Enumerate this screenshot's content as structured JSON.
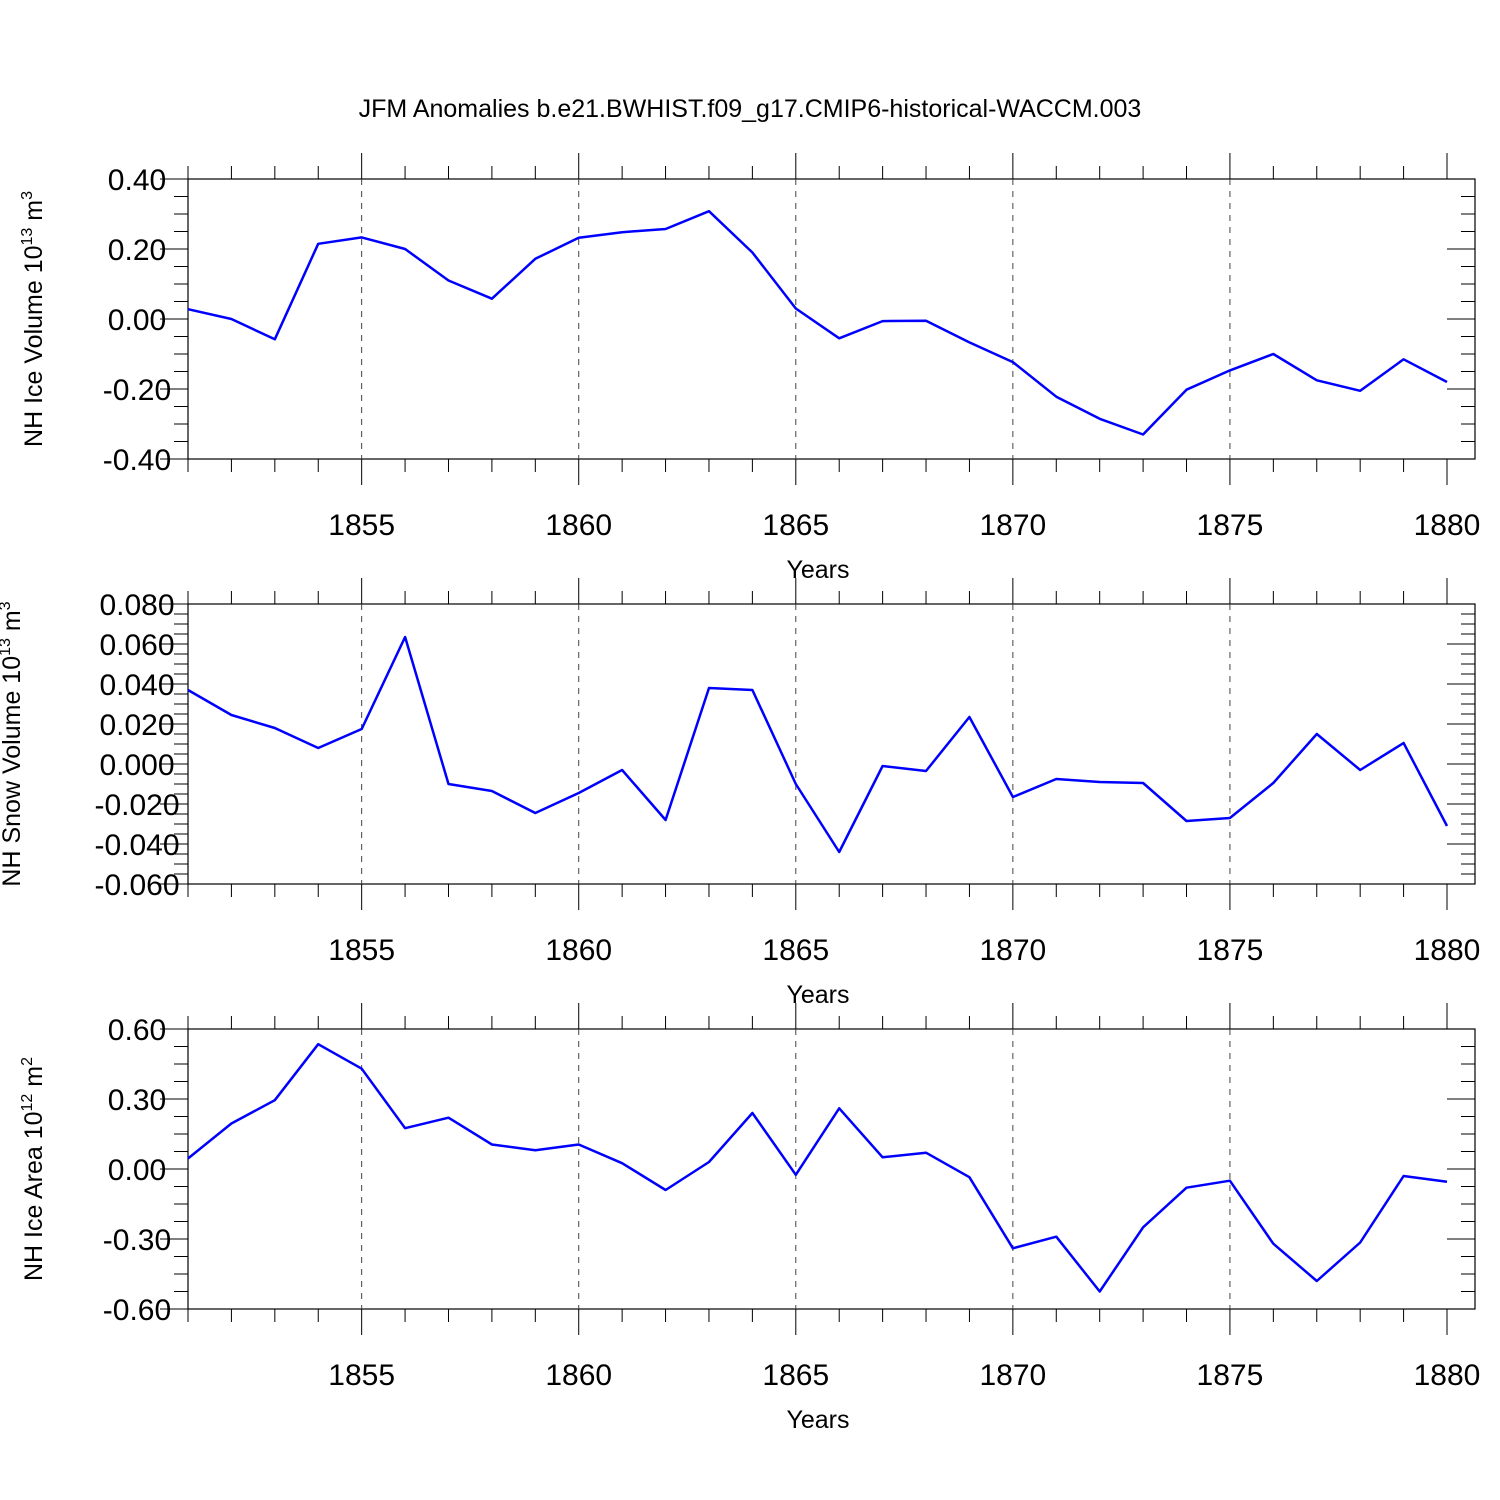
{
  "title": "JFM Anomalies b.e21.BWHIST.f09_g17.CMIP6-historical-WACCM.003",
  "chart_data": [
    {
      "type": "line",
      "ylabel": "NH Ice Volume 10",
      "ylabel_exp": "13",
      "ylabel_unit": " m",
      "ylabel_unit_exp": "3",
      "xlabel": "Years",
      "xlim": [
        1851,
        1880
      ],
      "ylim": [
        -0.4,
        0.4
      ],
      "yticks": [
        "-0.40",
        "-0.20",
        "0.00",
        "0.20",
        "0.40"
      ],
      "xticks": [
        "1855",
        "1860",
        "1865",
        "1870",
        "1875",
        "1880"
      ],
      "grid": "vertical dashed at major x ticks",
      "x": [
        1851,
        1852,
        1853,
        1854,
        1855,
        1856,
        1857,
        1858,
        1859,
        1860,
        1861,
        1862,
        1863,
        1864,
        1865,
        1866,
        1867,
        1868,
        1869,
        1870,
        1871,
        1872,
        1873,
        1874,
        1875,
        1876,
        1877,
        1878,
        1879,
        1880
      ],
      "values": [
        0.028,
        0.0,
        -0.058,
        0.215,
        0.233,
        0.2,
        0.11,
        0.058,
        0.172,
        0.232,
        0.248,
        0.257,
        0.308,
        0.19,
        0.03,
        -0.055,
        -0.006,
        -0.005,
        -0.067,
        -0.123,
        -0.222,
        -0.285,
        -0.33,
        -0.202,
        -0.147,
        -0.1,
        -0.175,
        -0.205,
        -0.115,
        -0.18
      ],
      "color": "#0000ff"
    },
    {
      "type": "line",
      "ylabel": "NH Snow Volume 10",
      "ylabel_exp": "13",
      "ylabel_unit": " m",
      "ylabel_unit_exp": "3",
      "xlabel": "Years",
      "xlim": [
        1851,
        1880
      ],
      "ylim": [
        -0.06,
        0.08
      ],
      "yticks": [
        "-0.060",
        "-0.040",
        "-0.020",
        "0.000",
        "0.020",
        "0.040",
        "0.060",
        "0.080"
      ],
      "xticks": [
        "1855",
        "1860",
        "1865",
        "1870",
        "1875",
        "1880"
      ],
      "grid": "vertical dashed at major x ticks",
      "x": [
        1851,
        1852,
        1853,
        1854,
        1855,
        1856,
        1857,
        1858,
        1859,
        1860,
        1861,
        1862,
        1863,
        1864,
        1865,
        1866,
        1867,
        1868,
        1869,
        1870,
        1871,
        1872,
        1873,
        1874,
        1875,
        1876,
        1877,
        1878,
        1879,
        1880
      ],
      "values": [
        0.037,
        0.0245,
        0.018,
        0.008,
        0.0175,
        0.0635,
        -0.01,
        -0.0135,
        -0.0245,
        -0.0145,
        -0.003,
        -0.028,
        0.038,
        0.037,
        -0.01,
        -0.044,
        -0.001,
        -0.0035,
        0.0235,
        -0.0165,
        -0.0075,
        -0.009,
        -0.0095,
        -0.0285,
        -0.027,
        -0.0095,
        0.015,
        -0.003,
        0.0105,
        -0.031
      ],
      "color": "#0000ff"
    },
    {
      "type": "line",
      "ylabel": "NH Ice Area 10",
      "ylabel_exp": "12",
      "ylabel_unit": " m",
      "ylabel_unit_exp": "2",
      "xlabel": "Years",
      "xlim": [
        1851,
        1880
      ],
      "ylim": [
        -0.6,
        0.6
      ],
      "yticks": [
        "-0.60",
        "-0.30",
        "0.00",
        "0.30",
        "0.60"
      ],
      "xticks": [
        "1855",
        "1860",
        "1865",
        "1870",
        "1875",
        "1880"
      ],
      "grid": "vertical dashed at major x ticks",
      "x": [
        1851,
        1852,
        1853,
        1854,
        1855,
        1856,
        1857,
        1858,
        1859,
        1860,
        1861,
        1862,
        1863,
        1864,
        1865,
        1866,
        1867,
        1868,
        1869,
        1870,
        1871,
        1872,
        1873,
        1874,
        1875,
        1876,
        1877,
        1878,
        1879,
        1880
      ],
      "values": [
        0.045,
        0.195,
        0.295,
        0.535,
        0.43,
        0.175,
        0.22,
        0.105,
        0.08,
        0.105,
        0.025,
        -0.09,
        0.03,
        0.24,
        -0.025,
        0.26,
        0.05,
        0.07,
        -0.035,
        -0.34,
        -0.29,
        -0.525,
        -0.25,
        -0.08,
        -0.05,
        -0.32,
        -0.48,
        -0.315,
        -0.03,
        -0.055
      ],
      "color": "#0000ff"
    }
  ]
}
